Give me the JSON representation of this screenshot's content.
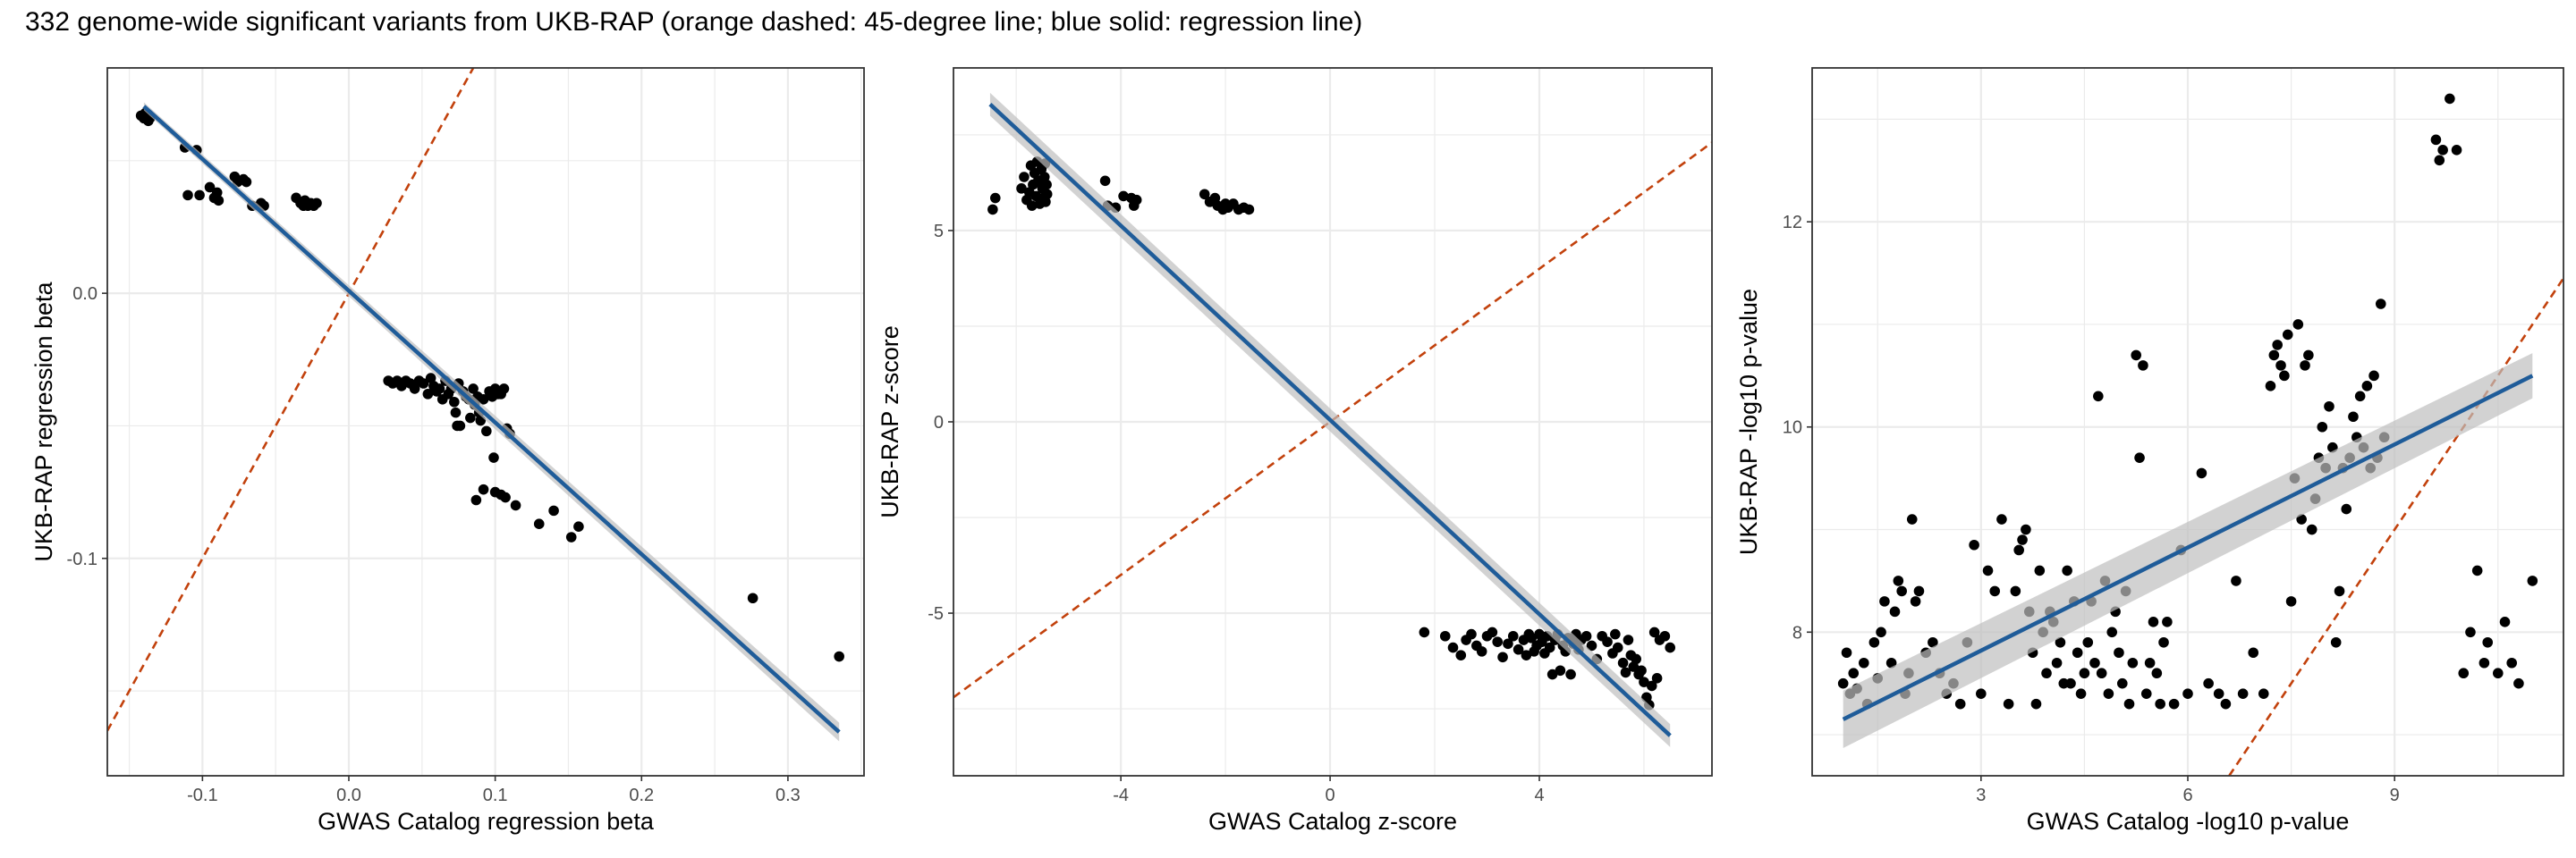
{
  "figure": {
    "title": "332 genome-wide significant variants from UKB-RAP (orange dashed: 45-degree line; blue solid: regression line)",
    "colors": {
      "identity_line": "#c2410c",
      "regression_line": "#1f5c99",
      "band": "#bfbfbf",
      "points": "#000000",
      "panel_border": "#333333",
      "grid": "#ebebeb"
    }
  },
  "chart_data": [
    {
      "type": "scatter",
      "xlabel": "GWAS Catalog regression beta",
      "ylabel": "UKB-RAP regression beta",
      "xlim": [
        -0.165,
        0.352
      ],
      "ylim": [
        -0.182,
        0.085
      ],
      "xticks": [
        -0.1,
        0.0,
        0.1,
        0.2,
        0.3
      ],
      "xtick_labels": [
        "-0.1",
        "0.0",
        "0.1",
        "0.2",
        "0.3"
      ],
      "yticks": [
        -0.1,
        0.0
      ],
      "ytick_labels": [
        "-0.1",
        "0.0"
      ],
      "grid": true,
      "identity_line": true,
      "regression": {
        "x": [
          -0.14,
          0.335
        ],
        "y": [
          0.0705,
          -0.1655
        ],
        "band_halfwidth": [
          0.0015,
          0.0035
        ]
      },
      "points": [
        [
          -0.142,
          0.067
        ],
        [
          -0.14,
          0.066
        ],
        [
          -0.138,
          0.066
        ],
        [
          -0.139,
          0.068
        ],
        [
          -0.137,
          0.065
        ],
        [
          -0.136,
          0.066
        ],
        [
          -0.112,
          0.055
        ],
        [
          -0.104,
          0.054
        ],
        [
          -0.11,
          0.037
        ],
        [
          -0.102,
          0.037
        ],
        [
          -0.095,
          0.04
        ],
        [
          -0.092,
          0.036
        ],
        [
          -0.09,
          0.038
        ],
        [
          -0.089,
          0.035
        ],
        [
          -0.078,
          0.044
        ],
        [
          -0.076,
          0.042
        ],
        [
          -0.072,
          0.043
        ],
        [
          -0.07,
          0.042
        ],
        [
          -0.066,
          0.033
        ],
        [
          -0.06,
          0.034
        ],
        [
          -0.058,
          0.033
        ],
        [
          -0.036,
          0.036
        ],
        [
          -0.033,
          0.034
        ],
        [
          -0.03,
          0.035
        ],
        [
          -0.028,
          0.033
        ],
        [
          -0.026,
          0.034
        ],
        [
          -0.024,
          0.033
        ],
        [
          -0.022,
          0.034
        ],
        [
          -0.031,
          0.033
        ],
        [
          0.027,
          -0.033
        ],
        [
          0.03,
          -0.034
        ],
        [
          0.033,
          -0.033
        ],
        [
          0.036,
          -0.035
        ],
        [
          0.039,
          -0.033
        ],
        [
          0.042,
          -0.034
        ],
        [
          0.045,
          -0.036
        ],
        [
          0.048,
          -0.033
        ],
        [
          0.051,
          -0.034
        ],
        [
          0.054,
          -0.038
        ],
        [
          0.056,
          -0.032
        ],
        [
          0.058,
          -0.035
        ],
        [
          0.06,
          -0.037
        ],
        [
          0.062,
          -0.036
        ],
        [
          0.064,
          -0.04
        ],
        [
          0.066,
          -0.033
        ],
        [
          0.068,
          -0.038
        ],
        [
          0.07,
          -0.036
        ],
        [
          0.072,
          -0.041
        ],
        [
          0.073,
          -0.045
        ],
        [
          0.074,
          -0.05
        ],
        [
          0.075,
          -0.034
        ],
        [
          0.076,
          -0.05
        ],
        [
          0.078,
          -0.037
        ],
        [
          0.08,
          -0.039
        ],
        [
          0.082,
          -0.04
        ],
        [
          0.083,
          -0.047
        ],
        [
          0.085,
          -0.036
        ],
        [
          0.086,
          -0.042
        ],
        [
          0.088,
          -0.039
        ],
        [
          0.089,
          -0.045
        ],
        [
          0.09,
          -0.048
        ],
        [
          0.092,
          -0.04
        ],
        [
          0.094,
          -0.052
        ],
        [
          0.096,
          -0.037
        ],
        [
          0.098,
          -0.039
        ],
        [
          0.1,
          -0.036
        ],
        [
          0.102,
          -0.038
        ],
        [
          0.104,
          -0.038
        ],
        [
          0.106,
          -0.036
        ],
        [
          0.108,
          -0.051
        ],
        [
          0.11,
          -0.053
        ],
        [
          0.099,
          -0.062
        ],
        [
          0.1,
          -0.075
        ],
        [
          0.092,
          -0.074
        ],
        [
          0.087,
          -0.078
        ],
        [
          0.104,
          -0.076
        ],
        [
          0.107,
          -0.077
        ],
        [
          0.114,
          -0.08
        ],
        [
          0.13,
          -0.087
        ],
        [
          0.14,
          -0.082
        ],
        [
          0.152,
          -0.092
        ],
        [
          0.157,
          -0.088
        ],
        [
          0.276,
          -0.115
        ],
        [
          0.335,
          -0.137
        ]
      ]
    },
    {
      "type": "scatter",
      "xlabel": "GWAS Catalog z-score",
      "ylabel": "UKB-RAP z-score",
      "xlim": [
        -7.2,
        7.3
      ],
      "ylim": [
        -9.25,
        9.25
      ],
      "xticks": [
        -4,
        0,
        4
      ],
      "xtick_labels": [
        "-4",
        "0",
        "4"
      ],
      "yticks": [
        -5,
        0,
        5
      ],
      "ytick_labels": [
        "-5",
        "0",
        "5"
      ],
      "grid": true,
      "identity_line": true,
      "regression": {
        "x": [
          -6.5,
          6.5
        ],
        "y": [
          8.3,
          -8.2
        ],
        "band_halfwidth": [
          0.3,
          0.3
        ]
      },
      "points": [
        [
          -6.45,
          5.55
        ],
        [
          -6.4,
          5.85
        ],
        [
          -5.9,
          6.1
        ],
        [
          -5.85,
          6.4
        ],
        [
          -5.8,
          5.8
        ],
        [
          -5.75,
          6.0
        ],
        [
          -5.72,
          6.7
        ],
        [
          -5.7,
          5.65
        ],
        [
          -5.68,
          6.2
        ],
        [
          -5.65,
          6.5
        ],
        [
          -5.62,
          5.9
        ],
        [
          -5.6,
          6.8
        ],
        [
          -5.58,
          6.3
        ],
        [
          -5.55,
          5.7
        ],
        [
          -5.52,
          6.6
        ],
        [
          -5.5,
          6.1
        ],
        [
          -5.48,
          5.85
        ],
        [
          -5.46,
          6.4
        ],
        [
          -5.45,
          6.75
        ],
        [
          -5.44,
          5.75
        ],
        [
          -5.42,
          6.2
        ],
        [
          -5.41,
          5.95
        ],
        [
          -4.3,
          6.3
        ],
        [
          -4.25,
          5.65
        ],
        [
          -4.1,
          5.6
        ],
        [
          -3.95,
          5.9
        ],
        [
          -3.8,
          5.85
        ],
        [
          -3.75,
          5.65
        ],
        [
          -3.7,
          5.8
        ],
        [
          -2.4,
          5.95
        ],
        [
          -2.3,
          5.75
        ],
        [
          -2.2,
          5.85
        ],
        [
          -2.15,
          5.65
        ],
        [
          -2.05,
          5.55
        ],
        [
          -2.0,
          5.7
        ],
        [
          -1.95,
          5.6
        ],
        [
          -1.85,
          5.7
        ],
        [
          -1.75,
          5.55
        ],
        [
          -1.65,
          5.6
        ],
        [
          -1.55,
          5.55
        ],
        [
          1.8,
          -5.5
        ],
        [
          2.2,
          -5.6
        ],
        [
          2.35,
          -5.9
        ],
        [
          2.5,
          -6.1
        ],
        [
          2.6,
          -5.7
        ],
        [
          2.7,
          -5.55
        ],
        [
          2.8,
          -5.85
        ],
        [
          2.9,
          -6.0
        ],
        [
          3.0,
          -5.6
        ],
        [
          3.1,
          -5.5
        ],
        [
          3.2,
          -5.75
        ],
        [
          3.3,
          -6.15
        ],
        [
          3.4,
          -5.8
        ],
        [
          3.5,
          -5.6
        ],
        [
          3.6,
          -5.95
        ],
        [
          3.7,
          -5.7
        ],
        [
          3.75,
          -6.1
        ],
        [
          3.8,
          -5.55
        ],
        [
          3.85,
          -5.65
        ],
        [
          3.9,
          -6.0
        ],
        [
          3.95,
          -5.85
        ],
        [
          4.0,
          -5.55
        ],
        [
          4.05,
          -5.75
        ],
        [
          4.1,
          -6.05
        ],
        [
          4.15,
          -5.6
        ],
        [
          4.2,
          -5.9
        ],
        [
          4.25,
          -6.6
        ],
        [
          4.3,
          -5.7
        ],
        [
          4.35,
          -5.55
        ],
        [
          4.4,
          -6.5
        ],
        [
          4.45,
          -5.85
        ],
        [
          4.5,
          -6.0
        ],
        [
          4.55,
          -5.65
        ],
        [
          4.6,
          -6.6
        ],
        [
          4.65,
          -5.8
        ],
        [
          4.7,
          -5.55
        ],
        [
          4.75,
          -5.95
        ],
        [
          4.8,
          -5.7
        ],
        [
          4.9,
          -5.6
        ],
        [
          5.0,
          -5.85
        ],
        [
          5.1,
          -6.2
        ],
        [
          5.2,
          -5.6
        ],
        [
          5.3,
          -5.75
        ],
        [
          5.4,
          -6.05
        ],
        [
          5.45,
          -5.55
        ],
        [
          5.5,
          -5.9
        ],
        [
          5.6,
          -6.3
        ],
        [
          5.7,
          -5.7
        ],
        [
          5.75,
          -6.1
        ],
        [
          5.8,
          -6.4
        ],
        [
          5.85,
          -6.2
        ],
        [
          5.9,
          -6.6
        ],
        [
          6.0,
          -6.8
        ],
        [
          6.05,
          -7.2
        ],
        [
          6.1,
          -7.4
        ],
        [
          6.15,
          -6.9
        ],
        [
          6.2,
          -5.5
        ],
        [
          6.25,
          -6.7
        ],
        [
          6.3,
          -5.7
        ],
        [
          6.4,
          -5.6
        ],
        [
          6.5,
          -5.9
        ],
        [
          5.95,
          -6.5
        ],
        [
          5.65,
          -6.55
        ]
      ]
    },
    {
      "type": "scatter",
      "xlabel": "GWAS Catalog -log10 p-value",
      "ylabel": "UKB-RAP -log10 p-value",
      "xlim": [
        0.55,
        11.45
      ],
      "ylim": [
        6.6,
        13.5
      ],
      "xticks": [
        3,
        6,
        9
      ],
      "xtick_labels": [
        "3",
        "6",
        "9"
      ],
      "yticks": [
        8,
        10,
        12
      ],
      "ytick_labels": [
        "8",
        "10",
        "12"
      ],
      "grid": true,
      "identity_line": true,
      "regression": {
        "x": [
          1.0,
          11.0
        ],
        "y": [
          7.15,
          10.5
        ],
        "band_halfwidth": [
          0.28,
          0.22
        ]
      },
      "points": [
        [
          1.0,
          7.5
        ],
        [
          1.05,
          7.8
        ],
        [
          1.1,
          7.4
        ],
        [
          1.15,
          7.6
        ],
        [
          1.2,
          7.45
        ],
        [
          1.3,
          7.7
        ],
        [
          1.35,
          7.3
        ],
        [
          1.45,
          7.9
        ],
        [
          1.5,
          7.55
        ],
        [
          1.55,
          8.0
        ],
        [
          1.6,
          8.3
        ],
        [
          1.7,
          7.7
        ],
        [
          1.75,
          8.2
        ],
        [
          1.8,
          8.5
        ],
        [
          1.85,
          8.4
        ],
        [
          1.9,
          7.4
        ],
        [
          1.95,
          7.6
        ],
        [
          2.0,
          9.1
        ],
        [
          2.05,
          8.3
        ],
        [
          2.1,
          8.4
        ],
        [
          2.2,
          7.8
        ],
        [
          2.3,
          7.9
        ],
        [
          2.4,
          7.6
        ],
        [
          2.5,
          7.4
        ],
        [
          2.6,
          7.5
        ],
        [
          2.7,
          7.3
        ],
        [
          2.8,
          7.9
        ],
        [
          2.9,
          8.85
        ],
        [
          3.0,
          7.4
        ],
        [
          3.1,
          8.6
        ],
        [
          3.2,
          8.4
        ],
        [
          3.3,
          9.1
        ],
        [
          3.4,
          7.3
        ],
        [
          3.5,
          8.4
        ],
        [
          3.55,
          8.8
        ],
        [
          3.6,
          8.9
        ],
        [
          3.65,
          9.0
        ],
        [
          3.7,
          8.2
        ],
        [
          3.75,
          7.8
        ],
        [
          3.8,
          7.3
        ],
        [
          3.85,
          8.6
        ],
        [
          3.9,
          8.0
        ],
        [
          3.95,
          7.6
        ],
        [
          4.0,
          8.2
        ],
        [
          4.05,
          8.1
        ],
        [
          4.1,
          7.7
        ],
        [
          4.15,
          7.9
        ],
        [
          4.2,
          7.5
        ],
        [
          4.25,
          8.6
        ],
        [
          4.3,
          7.5
        ],
        [
          4.35,
          8.3
        ],
        [
          4.4,
          7.8
        ],
        [
          4.45,
          7.4
        ],
        [
          4.5,
          7.6
        ],
        [
          4.55,
          7.9
        ],
        [
          4.6,
          8.3
        ],
        [
          4.65,
          7.7
        ],
        [
          4.7,
          10.3
        ],
        [
          4.75,
          7.6
        ],
        [
          4.8,
          8.5
        ],
        [
          4.85,
          7.4
        ],
        [
          4.9,
          8.0
        ],
        [
          4.95,
          8.2
        ],
        [
          5.0,
          7.8
        ],
        [
          5.05,
          7.5
        ],
        [
          5.1,
          8.4
        ],
        [
          5.15,
          7.3
        ],
        [
          5.2,
          7.7
        ],
        [
          5.25,
          10.7
        ],
        [
          5.3,
          9.7
        ],
        [
          5.35,
          10.6
        ],
        [
          5.4,
          7.4
        ],
        [
          5.45,
          7.7
        ],
        [
          5.5,
          8.1
        ],
        [
          5.55,
          7.6
        ],
        [
          5.6,
          7.3
        ],
        [
          5.65,
          7.9
        ],
        [
          5.7,
          8.1
        ],
        [
          5.8,
          7.3
        ],
        [
          5.9,
          8.8
        ],
        [
          6.0,
          7.4
        ],
        [
          6.2,
          9.55
        ],
        [
          6.3,
          7.5
        ],
        [
          6.45,
          7.4
        ],
        [
          6.55,
          7.3
        ],
        [
          6.7,
          8.5
        ],
        [
          6.8,
          7.4
        ],
        [
          6.95,
          7.8
        ],
        [
          7.1,
          7.4
        ],
        [
          7.2,
          10.4
        ],
        [
          7.25,
          10.7
        ],
        [
          7.3,
          10.8
        ],
        [
          7.35,
          10.6
        ],
        [
          7.4,
          10.5
        ],
        [
          7.45,
          10.9
        ],
        [
          7.5,
          8.3
        ],
        [
          7.55,
          9.5
        ],
        [
          7.6,
          11.0
        ],
        [
          7.65,
          9.1
        ],
        [
          7.7,
          10.6
        ],
        [
          7.75,
          10.7
        ],
        [
          7.8,
          9.0
        ],
        [
          7.85,
          9.3
        ],
        [
          7.9,
          9.7
        ],
        [
          7.95,
          10.0
        ],
        [
          8.0,
          9.6
        ],
        [
          8.05,
          10.2
        ],
        [
          8.1,
          9.8
        ],
        [
          8.15,
          7.9
        ],
        [
          8.2,
          8.4
        ],
        [
          8.25,
          9.6
        ],
        [
          8.3,
          9.2
        ],
        [
          8.35,
          9.7
        ],
        [
          8.4,
          10.1
        ],
        [
          8.45,
          9.9
        ],
        [
          8.5,
          10.3
        ],
        [
          8.55,
          9.8
        ],
        [
          8.6,
          10.4
        ],
        [
          8.65,
          9.6
        ],
        [
          8.7,
          10.5
        ],
        [
          8.75,
          9.7
        ],
        [
          8.8,
          11.2
        ],
        [
          8.85,
          9.9
        ],
        [
          9.6,
          12.8
        ],
        [
          9.65,
          12.6
        ],
        [
          9.7,
          12.7
        ],
        [
          9.8,
          13.2
        ],
        [
          9.9,
          12.7
        ],
        [
          10.0,
          7.6
        ],
        [
          10.1,
          8.0
        ],
        [
          10.2,
          8.6
        ],
        [
          10.3,
          7.7
        ],
        [
          10.35,
          7.9
        ],
        [
          10.5,
          7.6
        ],
        [
          10.6,
          8.1
        ],
        [
          10.7,
          7.7
        ],
        [
          10.8,
          7.5
        ],
        [
          11.0,
          8.5
        ]
      ]
    }
  ]
}
